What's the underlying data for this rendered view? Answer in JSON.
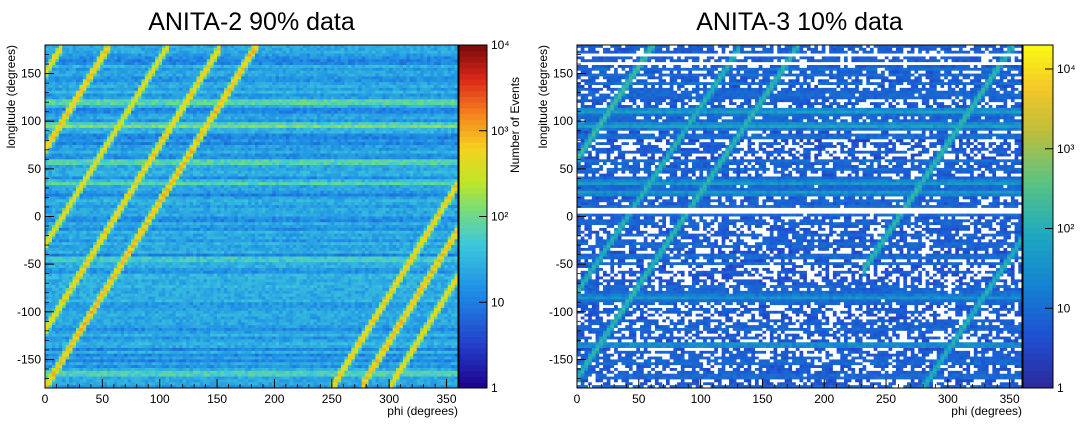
{
  "chart_data": [
    {
      "type": "heatmap",
      "title": "ANITA-2 90% data",
      "xlabel": "phi (degrees)",
      "ylabel": "longitude (degrees)",
      "zlabel": "Number of Events",
      "xlim": [
        0,
        360
      ],
      "ylim": [
        -180,
        180
      ],
      "z_log": true,
      "zlim": [
        1,
        10000
      ],
      "x_ticks": [
        "0",
        "50",
        "100",
        "150",
        "200",
        "250",
        "300",
        "350"
      ],
      "y_ticks": [
        "-150",
        "-100",
        "-50",
        "0",
        "50",
        "100",
        "150"
      ],
      "z_ticks": [
        "1",
        "10",
        "10²",
        "10³",
        "10⁴"
      ],
      "palette": "rainbow",
      "background_level": 20,
      "gaps": false,
      "diagonal_bands": [
        {
          "phi_start": 0,
          "lon_start": -180,
          "slope": 1.95,
          "level": 900
        },
        {
          "phi_start": 0,
          "lon_start": -120,
          "slope": 1.95,
          "level": 700
        },
        {
          "phi_start": 0,
          "lon_start": -30,
          "slope": 1.95,
          "level": 500
        },
        {
          "phi_start": 0,
          "lon_start": 70,
          "slope": 1.95,
          "level": 800
        },
        {
          "phi_start": 0,
          "lon_start": 150,
          "slope": 1.95,
          "level": 600
        },
        {
          "phi_start": 250,
          "lon_start": -180,
          "slope": 1.95,
          "level": 700
        },
        {
          "phi_start": 275,
          "lon_start": -180,
          "slope": 1.95,
          "level": 900
        },
        {
          "phi_start": 300,
          "lon_start": -180,
          "slope": 1.95,
          "level": 600
        }
      ],
      "horizontal_bands": [
        {
          "lon": 120,
          "level": 120
        },
        {
          "lon": 95,
          "level": 150
        },
        {
          "lon": 57,
          "level": 110
        },
        {
          "lon": 35,
          "level": 90
        },
        {
          "lon": -45,
          "level": 80
        },
        {
          "lon": -165,
          "level": 100
        }
      ]
    },
    {
      "type": "heatmap",
      "title": "ANITA-3 10% data",
      "xlabel": "phi (degrees)",
      "ylabel": "longitude (degrees)",
      "zlabel": "",
      "xlim": [
        0,
        360
      ],
      "ylim": [
        -180,
        180
      ],
      "z_log": true,
      "zlim": [
        1,
        20000
      ],
      "x_ticks": [
        "0",
        "50",
        "100",
        "150",
        "200",
        "250",
        "300",
        "350"
      ],
      "y_ticks": [
        "-150",
        "-100",
        "-50",
        "0",
        "50",
        "100",
        "150"
      ],
      "z_ticks": [
        "1",
        "10",
        "10²",
        "10³",
        "10⁴"
      ],
      "palette": "parula",
      "background_level": 6,
      "gaps": true,
      "diagonal_bands": [
        {
          "phi_start": 0,
          "lon_start": -170,
          "slope": 1.95,
          "level": 150
        },
        {
          "phi_start": 0,
          "lon_start": -80,
          "slope": 1.95,
          "level": 120
        },
        {
          "phi_start": 0,
          "lon_start": 60,
          "slope": 1.95,
          "level": 200
        },
        {
          "phi_start": 280,
          "lon_start": -180,
          "slope": 1.95,
          "level": 120
        },
        {
          "phi_start": 230,
          "lon_start": -60,
          "slope": 1.95,
          "level": 150
        }
      ],
      "horizontal_bands": [
        {
          "lon": 110,
          "level": 60
        },
        {
          "lon": 95,
          "level": 70
        },
        {
          "lon": 35,
          "level": 50
        },
        {
          "lon": 25,
          "level": 45
        },
        {
          "lon": -85,
          "level": 40
        },
        {
          "lon": -135,
          "level": 40
        }
      ]
    }
  ]
}
